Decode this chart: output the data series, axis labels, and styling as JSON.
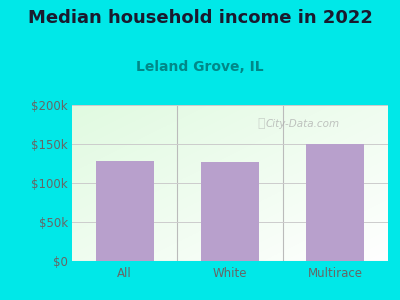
{
  "title": "Median household income in 2022",
  "subtitle": "Leland Grove, IL",
  "categories": [
    "All",
    "White",
    "Multirace"
  ],
  "values": [
    128000,
    127000,
    150000
  ],
  "bar_color": "#b8a0cc",
  "background_color": "#00e8e8",
  "title_color": "#1a1a2e",
  "subtitle_color": "#008888",
  "tick_color": "#666666",
  "grid_color": "#cccccc",
  "ylim": [
    0,
    200000
  ],
  "yticks": [
    0,
    50000,
    100000,
    150000,
    200000
  ],
  "ytick_labels": [
    "$0",
    "$50k",
    "$100k",
    "$150k",
    "$200k"
  ],
  "watermark": "City-Data.com",
  "title_fontsize": 13,
  "subtitle_fontsize": 10,
  "tick_fontsize": 8.5
}
